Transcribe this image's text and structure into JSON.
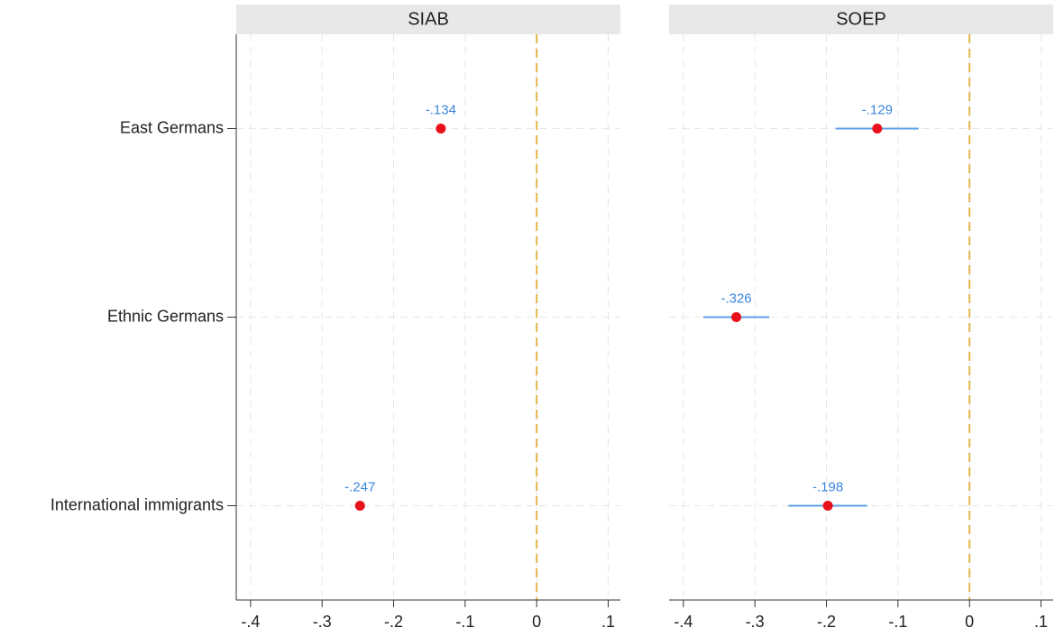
{
  "chart_data": [
    {
      "type": "dot",
      "title": "SIAB",
      "categories": [
        "East Germans",
        "Ethnic Germans",
        "International immigrants"
      ],
      "values": [
        -0.134,
        null,
        -0.247
      ],
      "value_labels": [
        "-.134",
        null,
        "-.247"
      ],
      "errors": [
        0.005,
        null,
        0.004
      ],
      "xlim": [
        -0.42,
        0.117
      ],
      "xticks": [
        {
          "value": -0.4,
          "label": "-.4"
        },
        {
          "value": -0.3,
          "label": "-.3"
        },
        {
          "value": -0.2,
          "label": "-.2"
        },
        {
          "value": -0.1,
          "label": "-.1"
        },
        0,
        {
          "value": 0.1,
          "label": ".1"
        }
      ],
      "xline": 0,
      "grid": true,
      "color": "#e8101a",
      "error_color": "#5aa0e8",
      "label_color": "#3a86e0",
      "xline_color": "#e3b54a"
    },
    {
      "type": "dot",
      "title": "SOEP",
      "values": [
        -0.129,
        -0.326,
        -0.198
      ],
      "value_labels": [
        "-.129",
        "-.326",
        "-.198"
      ],
      "errors": [
        0.058,
        0.046,
        0.055
      ],
      "xlim": [
        -0.42,
        0.117
      ],
      "xticks": [
        {
          "value": -0.4,
          "label": "-.4"
        },
        {
          "value": -0.3,
          "label": "-.3"
        },
        {
          "value": -0.2,
          "label": "-.2"
        },
        {
          "value": -0.1,
          "label": "-.1"
        },
        0,
        {
          "value": 0.1,
          "label": ".1"
        }
      ],
      "xline": 0,
      "grid": true,
      "color": "#e8101a",
      "error_color": "#5aa0e8",
      "label_color": "#3a86e0",
      "xline_color": "#e3b54a"
    }
  ]
}
